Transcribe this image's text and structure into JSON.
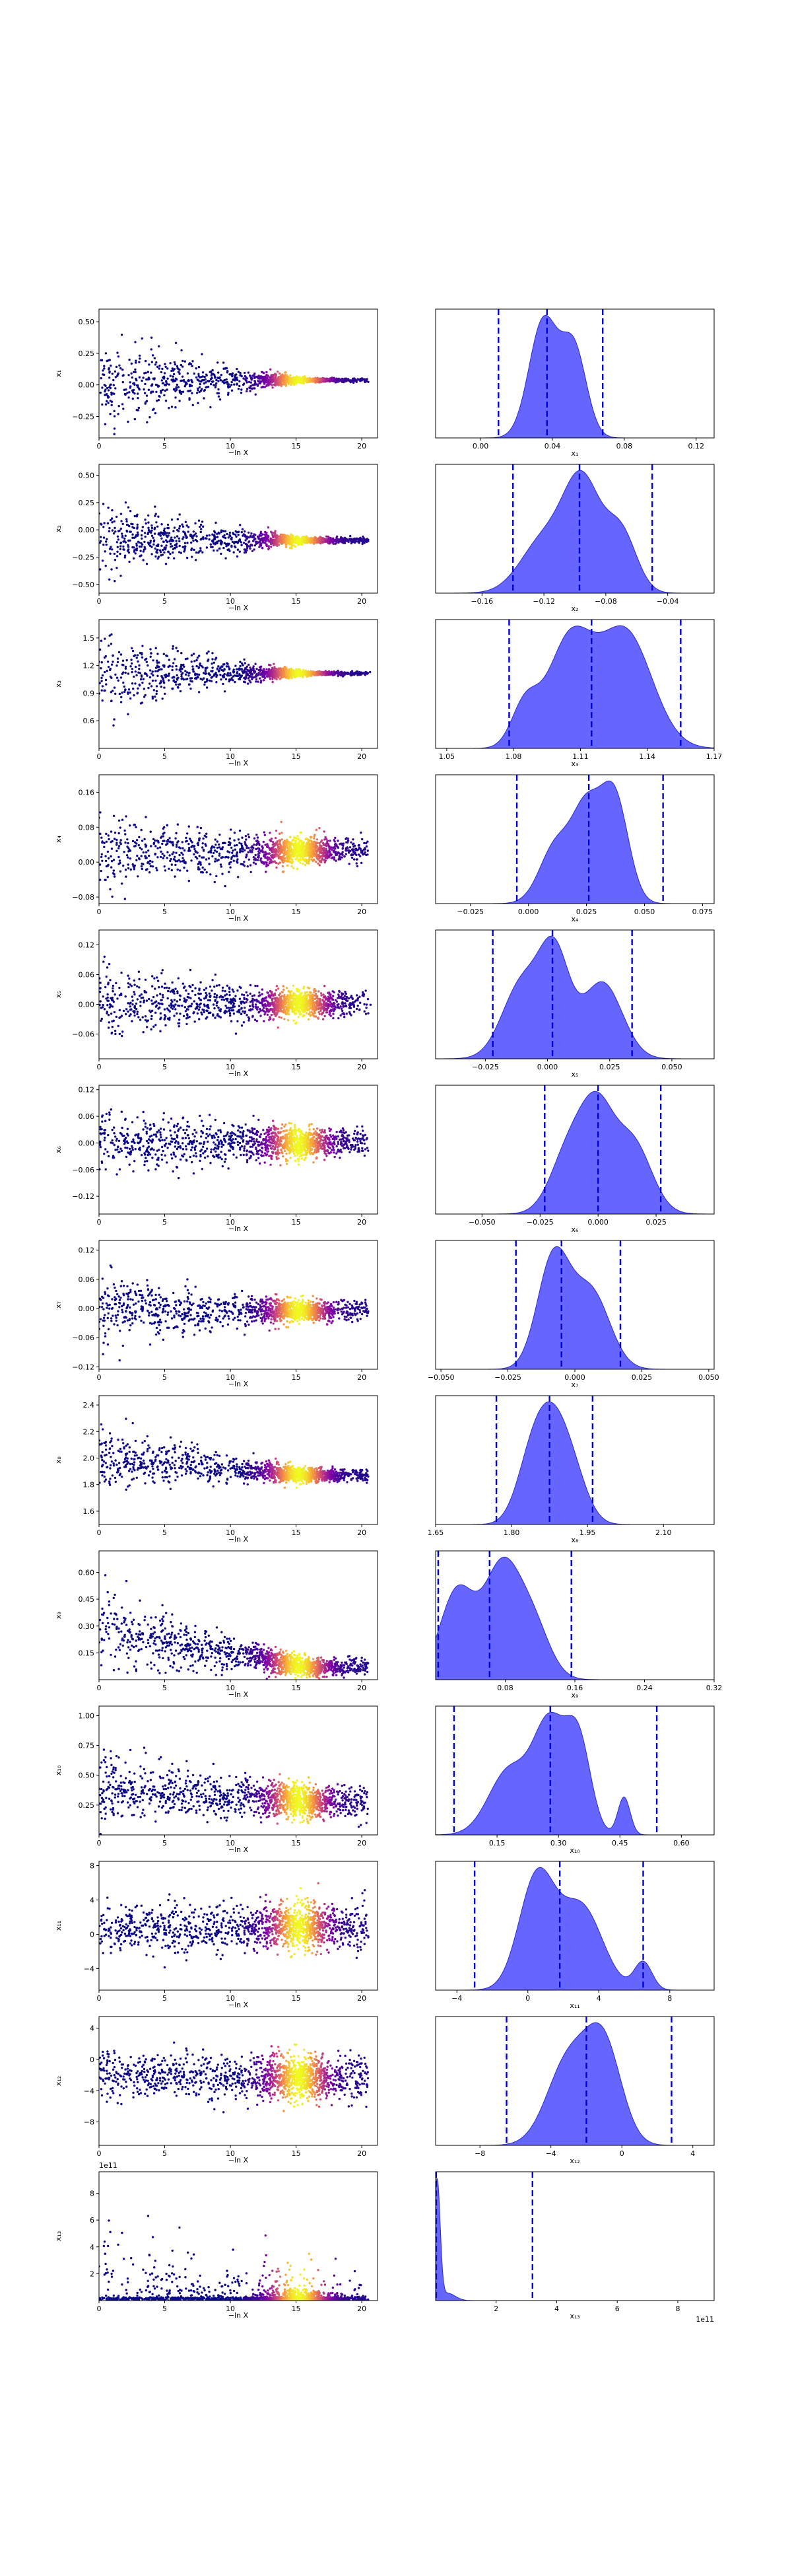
{
  "figure": {
    "left_xlabel": "−ln X",
    "left_xticks": [
      0,
      5,
      10,
      15,
      20
    ],
    "left_xlim": [
      0,
      21.2
    ],
    "colors": {
      "kde_fill": "#5555ff",
      "kde_edge": "#2a2acc",
      "quantile_line": "#0000dd",
      "scatter_low": "#0d0887",
      "scatter_mid": "#b52f8c",
      "scatter_high": "#f0f921"
    },
    "colormap": "plasma"
  },
  "chart_data": [
    {
      "type": "scatter+kde",
      "param": "x1",
      "ylabel": "x₁",
      "hist_xlabel": "x₁",
      "trace_ylim": [
        -0.42,
        0.6
      ],
      "trace_yticks": [
        -0.25,
        0.0,
        0.25,
        0.5
      ],
      "trace_ytick_labels": [
        "−0.25",
        "0.00",
        "0.25",
        "0.50"
      ],
      "trace_spread_start": 0.4,
      "trace_spread_end": 0.015,
      "hist_xlim": [
        -0.025,
        0.13
      ],
      "hist_xticks": [
        0.0,
        0.04,
        0.08,
        0.12
      ],
      "hist_xtick_labels": [
        "0.00",
        "0.04",
        "0.08",
        "0.12"
      ],
      "kde_peaks": [
        {
          "mu": 0.035,
          "s": 0.008,
          "a": 1.0
        },
        {
          "mu": 0.052,
          "s": 0.007,
          "a": 0.75
        }
      ],
      "quantiles": [
        0.01,
        0.037,
        0.068
      ]
    },
    {
      "type": "scatter+kde",
      "param": "x2",
      "ylabel": "x₂",
      "hist_xlabel": "x₂",
      "trace_ylim": [
        -0.58,
        0.6
      ],
      "trace_yticks": [
        -0.5,
        -0.25,
        0.0,
        0.25,
        0.5
      ],
      "trace_ytick_labels": [
        "−0.50",
        "−0.25",
        "0.00",
        "0.25",
        "0.50"
      ],
      "trace_spread_start": 0.42,
      "trace_spread_end": 0.025,
      "hist_xlim": [
        -0.19,
        -0.01
      ],
      "hist_xticks": [
        -0.16,
        -0.12,
        -0.08,
        -0.04
      ],
      "hist_xtick_labels": [
        "−0.16",
        "−0.12",
        "−0.08",
        "−0.04"
      ],
      "kde_peaks": [
        {
          "mu": -0.12,
          "s": 0.015,
          "a": 0.5
        },
        {
          "mu": -0.095,
          "s": 0.012,
          "a": 1.0
        },
        {
          "mu": -0.07,
          "s": 0.01,
          "a": 0.55
        }
      ],
      "quantiles": [
        -0.14,
        -0.097,
        -0.05
      ]
    },
    {
      "type": "scatter+kde",
      "param": "x3",
      "ylabel": "x₃",
      "hist_xlabel": "x₃",
      "trace_ylim": [
        0.3,
        1.7
      ],
      "trace_yticks": [
        0.6,
        0.9,
        1.2,
        1.5
      ],
      "trace_ytick_labels": [
        "0.6",
        "0.9",
        "1.2",
        "1.5"
      ],
      "trace_spread_start": 0.5,
      "trace_spread_end": 0.02,
      "hist_xlim": [
        1.045,
        1.17
      ],
      "hist_xticks": [
        1.05,
        1.08,
        1.11,
        1.14,
        1.17
      ],
      "hist_xtick_labels": [
        "1.05",
        "1.08",
        "1.11",
        "1.14",
        "1.17"
      ],
      "kde_peaks": [
        {
          "mu": 1.105,
          "s": 0.01,
          "a": 0.9
        },
        {
          "mu": 1.13,
          "s": 0.012,
          "a": 1.0
        },
        {
          "mu": 1.085,
          "s": 0.006,
          "a": 0.35
        }
      ],
      "quantiles": [
        1.078,
        1.115,
        1.155
      ]
    },
    {
      "type": "scatter+kde",
      "param": "x4",
      "ylabel": "x₄",
      "hist_xlabel": "x₄",
      "trace_ylim": [
        -0.095,
        0.2
      ],
      "trace_yticks": [
        -0.08,
        0.0,
        0.08,
        0.16
      ],
      "trace_ytick_labels": [
        "−0.08",
        "0.00",
        "0.08",
        "0.16"
      ],
      "trace_spread_start": 0.09,
      "trace_spread_end": 0.03,
      "hist_xlim": [
        -0.04,
        0.08
      ],
      "hist_xticks": [
        -0.025,
        0.0,
        0.025,
        0.05,
        0.075
      ],
      "hist_xtick_labels": [
        "−0.025",
        "0.000",
        "0.025",
        "0.050",
        "0.075"
      ],
      "kde_peaks": [
        {
          "mu": 0.012,
          "s": 0.007,
          "a": 0.55
        },
        {
          "mu": 0.025,
          "s": 0.006,
          "a": 0.8
        },
        {
          "mu": 0.037,
          "s": 0.006,
          "a": 1.0
        }
      ],
      "quantiles": [
        -0.005,
        0.026,
        0.058
      ]
    },
    {
      "type": "scatter+kde",
      "param": "x5",
      "ylabel": "x₅",
      "hist_xlabel": "x₅",
      "trace_ylim": [
        -0.11,
        0.15
      ],
      "trace_yticks": [
        -0.06,
        0.0,
        0.06,
        0.12
      ],
      "trace_ytick_labels": [
        "−0.06",
        "0.00",
        "0.06",
        "0.12"
      ],
      "trace_spread_start": 0.08,
      "trace_spread_end": 0.025,
      "hist_xlim": [
        -0.045,
        0.067
      ],
      "hist_xticks": [
        -0.025,
        0.0,
        0.025,
        0.05
      ],
      "hist_xtick_labels": [
        "−0.025",
        "0.000",
        "0.025",
        "0.050"
      ],
      "kde_peaks": [
        {
          "mu": -0.01,
          "s": 0.008,
          "a": 0.8
        },
        {
          "mu": 0.003,
          "s": 0.006,
          "a": 1.0
        },
        {
          "mu": 0.022,
          "s": 0.008,
          "a": 0.8
        }
      ],
      "quantiles": [
        -0.022,
        0.002,
        0.034
      ]
    },
    {
      "type": "scatter+kde",
      "param": "x6",
      "ylabel": "x₆",
      "hist_xlabel": "x₆",
      "trace_ylim": [
        -0.16,
        0.13
      ],
      "trace_yticks": [
        -0.12,
        -0.06,
        0.0,
        0.06,
        0.12
      ],
      "trace_ytick_labels": [
        "−0.12",
        "−0.06",
        "0.00",
        "0.06",
        "0.12"
      ],
      "trace_spread_start": 0.08,
      "trace_spread_end": 0.03,
      "hist_xlim": [
        -0.07,
        0.05
      ],
      "hist_xticks": [
        -0.05,
        -0.025,
        0.0,
        0.025
      ],
      "hist_xtick_labels": [
        "−0.050",
        "−0.025",
        "0.000",
        "0.025"
      ],
      "kde_peaks": [
        {
          "mu": -0.012,
          "s": 0.008,
          "a": 0.75
        },
        {
          "mu": 0.0,
          "s": 0.007,
          "a": 1.0
        },
        {
          "mu": 0.015,
          "s": 0.008,
          "a": 0.8
        }
      ],
      "quantiles": [
        -0.023,
        0.0,
        0.027
      ]
    },
    {
      "type": "scatter+kde",
      "param": "x7",
      "ylabel": "x₇",
      "hist_xlabel": "x₇",
      "trace_ylim": [
        -0.125,
        0.14
      ],
      "trace_yticks": [
        -0.12,
        -0.06,
        0.0,
        0.06,
        0.12
      ],
      "trace_ytick_labels": [
        "−0.12",
        "−0.06",
        "0.00",
        "0.06",
        "0.12"
      ],
      "trace_spread_start": 0.08,
      "trace_spread_end": 0.02,
      "hist_xlim": [
        -0.052,
        0.052
      ],
      "hist_xticks": [
        -0.05,
        -0.025,
        0.0,
        0.025,
        0.05
      ],
      "hist_xtick_labels": [
        "−0.050",
        "−0.025",
        "0.000",
        "0.025",
        "0.050"
      ],
      "kde_peaks": [
        {
          "mu": -0.008,
          "s": 0.006,
          "a": 1.0
        },
        {
          "mu": 0.006,
          "s": 0.007,
          "a": 0.7
        }
      ],
      "quantiles": [
        -0.022,
        -0.005,
        0.017
      ]
    },
    {
      "type": "scatter+kde",
      "param": "x8",
      "ylabel": "x₈",
      "hist_xlabel": "x₈",
      "trace_ylim": [
        1.5,
        2.47
      ],
      "trace_yticks": [
        1.6,
        1.8,
        2.0,
        2.2,
        2.4
      ],
      "trace_ytick_labels": [
        "1.6",
        "1.8",
        "2.0",
        "2.2",
        "2.4"
      ],
      "trace_spread_start": 0.25,
      "trace_spread_end": 0.05,
      "trace_center_start": 2.0,
      "trace_center_end": 1.87,
      "hist_xlim": [
        1.65,
        2.2
      ],
      "hist_xticks": [
        1.65,
        1.8,
        1.95,
        2.1
      ],
      "hist_xtick_labels": [
        "1.65",
        "1.80",
        "1.95",
        "2.10"
      ],
      "kde_peaks": [
        {
          "mu": 1.84,
          "s": 0.03,
          "a": 0.8
        },
        {
          "mu": 1.88,
          "s": 0.03,
          "a": 1.0
        },
        {
          "mu": 1.92,
          "s": 0.03,
          "a": 0.6
        }
      ],
      "quantiles": [
        1.77,
        1.875,
        1.96
      ]
    },
    {
      "type": "scatter+kde",
      "param": "x9",
      "ylabel": "x₉",
      "hist_xlabel": "x₉",
      "trace_ylim": [
        0.0,
        0.72
      ],
      "trace_yticks": [
        0.15,
        0.3,
        0.45,
        0.6
      ],
      "trace_ytick_labels": [
        "0.15",
        "0.30",
        "0.45",
        "0.60"
      ],
      "trace_spread_start": 0.25,
      "trace_spread_end": 0.05,
      "trace_center_start": 0.28,
      "trace_center_end": 0.07,
      "trace_floor": 0.005,
      "hist_xlim": [
        0.0,
        0.32
      ],
      "hist_xticks": [
        0.08,
        0.16,
        0.24,
        0.32
      ],
      "hist_xtick_labels": [
        "0.08",
        "0.16",
        "0.24",
        "0.32"
      ],
      "kde_peaks": [
        {
          "mu": 0.025,
          "s": 0.02,
          "a": 0.85
        },
        {
          "mu": 0.075,
          "s": 0.02,
          "a": 1.0
        },
        {
          "mu": 0.11,
          "s": 0.02,
          "a": 0.55
        }
      ],
      "quantiles": [
        0.003,
        0.062,
        0.156
      ]
    },
    {
      "type": "scatter+kde",
      "param": "x10",
      "ylabel": "x₁₀",
      "hist_xlabel": "x₁₀",
      "trace_ylim": [
        0.0,
        1.08
      ],
      "trace_yticks": [
        0.25,
        0.5,
        0.75,
        1.0
      ],
      "trace_ytick_labels": [
        "0.25",
        "0.50",
        "0.75",
        "1.00"
      ],
      "trace_spread_start": 0.28,
      "trace_spread_end": 0.14,
      "trace_center_start": 0.4,
      "trace_center_end": 0.27,
      "trace_floor": 0.005,
      "hist_xlim": [
        0.0,
        0.68
      ],
      "hist_xticks": [
        0.15,
        0.3,
        0.45,
        0.6
      ],
      "hist_xtick_labels": [
        "0.15",
        "0.30",
        "0.45",
        "0.60"
      ],
      "kde_peaks": [
        {
          "mu": 0.18,
          "s": 0.05,
          "a": 0.6
        },
        {
          "mu": 0.28,
          "s": 0.04,
          "a": 1.0
        },
        {
          "mu": 0.35,
          "s": 0.03,
          "a": 0.8
        },
        {
          "mu": 0.46,
          "s": 0.015,
          "a": 0.35
        }
      ],
      "quantiles": [
        0.045,
        0.28,
        0.54
      ]
    },
    {
      "type": "scatter+kde",
      "param": "x11",
      "ylabel": "x₁₁",
      "hist_xlabel": "x₁₁",
      "trace_ylim": [
        -6.5,
        8.5
      ],
      "trace_yticks": [
        -4,
        0,
        4,
        8
      ],
      "trace_ytick_labels": [
        "−4",
        "0",
        "4",
        "8"
      ],
      "trace_spread_start": 3.0,
      "trace_spread_end": 2.6,
      "trace_center_start": 0.5,
      "trace_center_end": 1.0,
      "hist_xlim": [
        -5.2,
        10.5
      ],
      "hist_xticks": [
        -4,
        0,
        4,
        8
      ],
      "hist_xtick_labels": [
        "−4",
        "0",
        "4",
        "8"
      ],
      "kde_peaks": [
        {
          "mu": 0.5,
          "s": 1.0,
          "a": 1.0
        },
        {
          "mu": 3.0,
          "s": 1.2,
          "a": 0.75
        },
        {
          "mu": 6.5,
          "s": 0.5,
          "a": 0.25
        }
      ],
      "quantiles": [
        -3.0,
        1.8,
        6.5
      ]
    },
    {
      "type": "scatter+kde",
      "param": "x12",
      "ylabel": "x₁₂",
      "hist_xlabel": "x₁₂",
      "trace_ylim": [
        -11,
        5.5
      ],
      "trace_yticks": [
        -8,
        -4,
        0,
        4
      ],
      "trace_ytick_labels": [
        "−8",
        "−4",
        "0",
        "4"
      ],
      "trace_spread_start": 3.2,
      "trace_spread_end": 2.8,
      "trace_center_start": -2.0,
      "trace_center_end": -2.5,
      "hist_xlim": [
        -10.5,
        5.2
      ],
      "hist_xticks": [
        -8,
        -4,
        0,
        4
      ],
      "hist_xtick_labels": [
        "−8",
        "−4",
        "0",
        "4"
      ],
      "kde_peaks": [
        {
          "mu": -3.0,
          "s": 1.2,
          "a": 0.9
        },
        {
          "mu": -1.0,
          "s": 1.0,
          "a": 1.0
        }
      ],
      "quantiles": [
        -6.5,
        -2.0,
        2.8
      ]
    },
    {
      "type": "scatter+kde",
      "param": "x13",
      "ylabel": "x₁₃",
      "hist_xlabel": "x₁₃",
      "trace_offset_label": "1e11",
      "hist_offset_label": "1e11",
      "trace_ylim": [
        0,
        9.6
      ],
      "trace_yticks": [
        2,
        4,
        6,
        8
      ],
      "trace_ytick_labels": [
        "2",
        "4",
        "6",
        "8"
      ],
      "trace_mode": "skewed",
      "hist_xlim": [
        0,
        9.2
      ],
      "hist_xticks": [
        2,
        4,
        6,
        8
      ],
      "hist_xtick_labels": [
        "2",
        "4",
        "6",
        "8"
      ],
      "kde_peaks": [
        {
          "mu": 0.05,
          "s": 0.1,
          "a": 1.0
        },
        {
          "mu": 0.4,
          "s": 0.25,
          "a": 0.06
        }
      ],
      "quantiles": [
        0.02,
        3.2
      ]
    }
  ]
}
